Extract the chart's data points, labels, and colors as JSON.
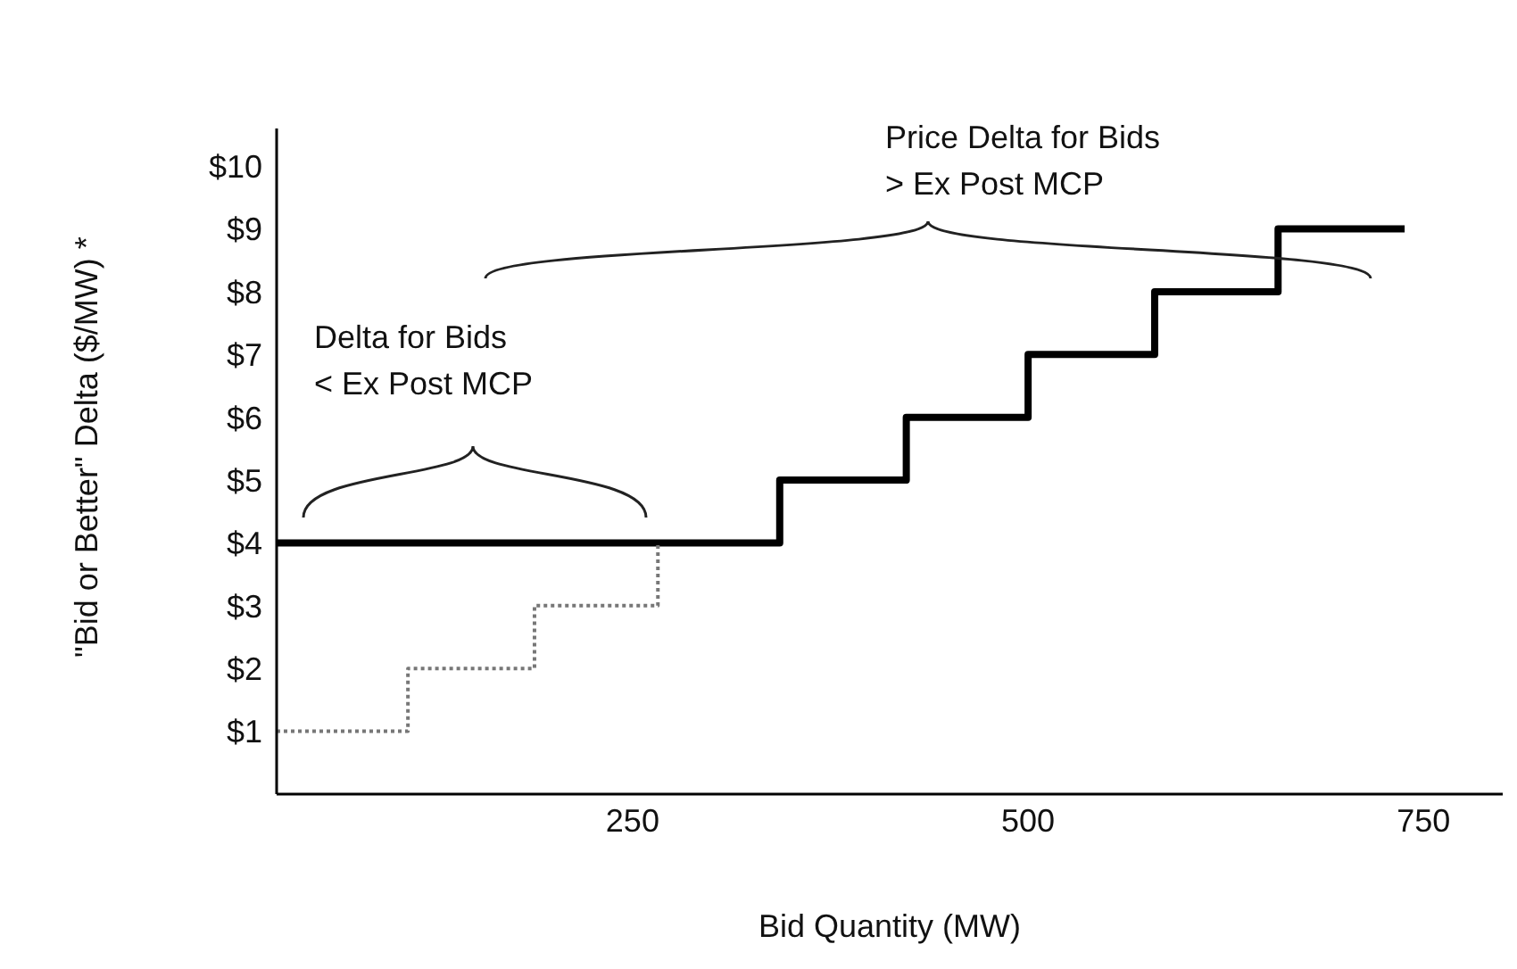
{
  "chart_data": {
    "type": "step",
    "xlabel": "Bid Quantity (MW)",
    "ylabel": "\"Bid or Better\" Delta ($/MW) *",
    "annotations": [
      "Delta for Bids\n< Ex Post MCP",
      "Price Delta for Bids\n> Ex Post MCP"
    ],
    "series": [
      {
        "color": "#000000",
        "line_style": "solid",
        "x": [
          25,
          343,
          423,
          500,
          580,
          658,
          738
        ],
        "values": [
          4,
          5,
          6,
          7,
          8,
          9,
          9
        ]
      },
      {
        "color": "#777777",
        "line_style": "dotted",
        "x": [
          25,
          108,
          188,
          266
        ],
        "values": [
          1,
          2,
          3,
          4
        ]
      }
    ],
    "xlim": [
      25,
      800
    ],
    "xticks": [
      250,
      500,
      750
    ],
    "ylim": [
      0,
      10.6
    ],
    "yticks": [
      {
        "value": 1,
        "label": "$1"
      },
      {
        "value": 2,
        "label": "$2"
      },
      {
        "value": 3,
        "label": "$3"
      },
      {
        "value": 4,
        "label": "$4"
      },
      {
        "value": 5,
        "label": "$5"
      },
      {
        "value": 6,
        "label": "$6"
      },
      {
        "value": 7,
        "label": "$7"
      },
      {
        "value": 8,
        "label": "$8"
      },
      {
        "value": 9,
        "label": "$9"
      },
      {
        "value": 10,
        "label": "$10"
      }
    ],
    "grid": false,
    "legend": false,
    "marker": "none"
  }
}
